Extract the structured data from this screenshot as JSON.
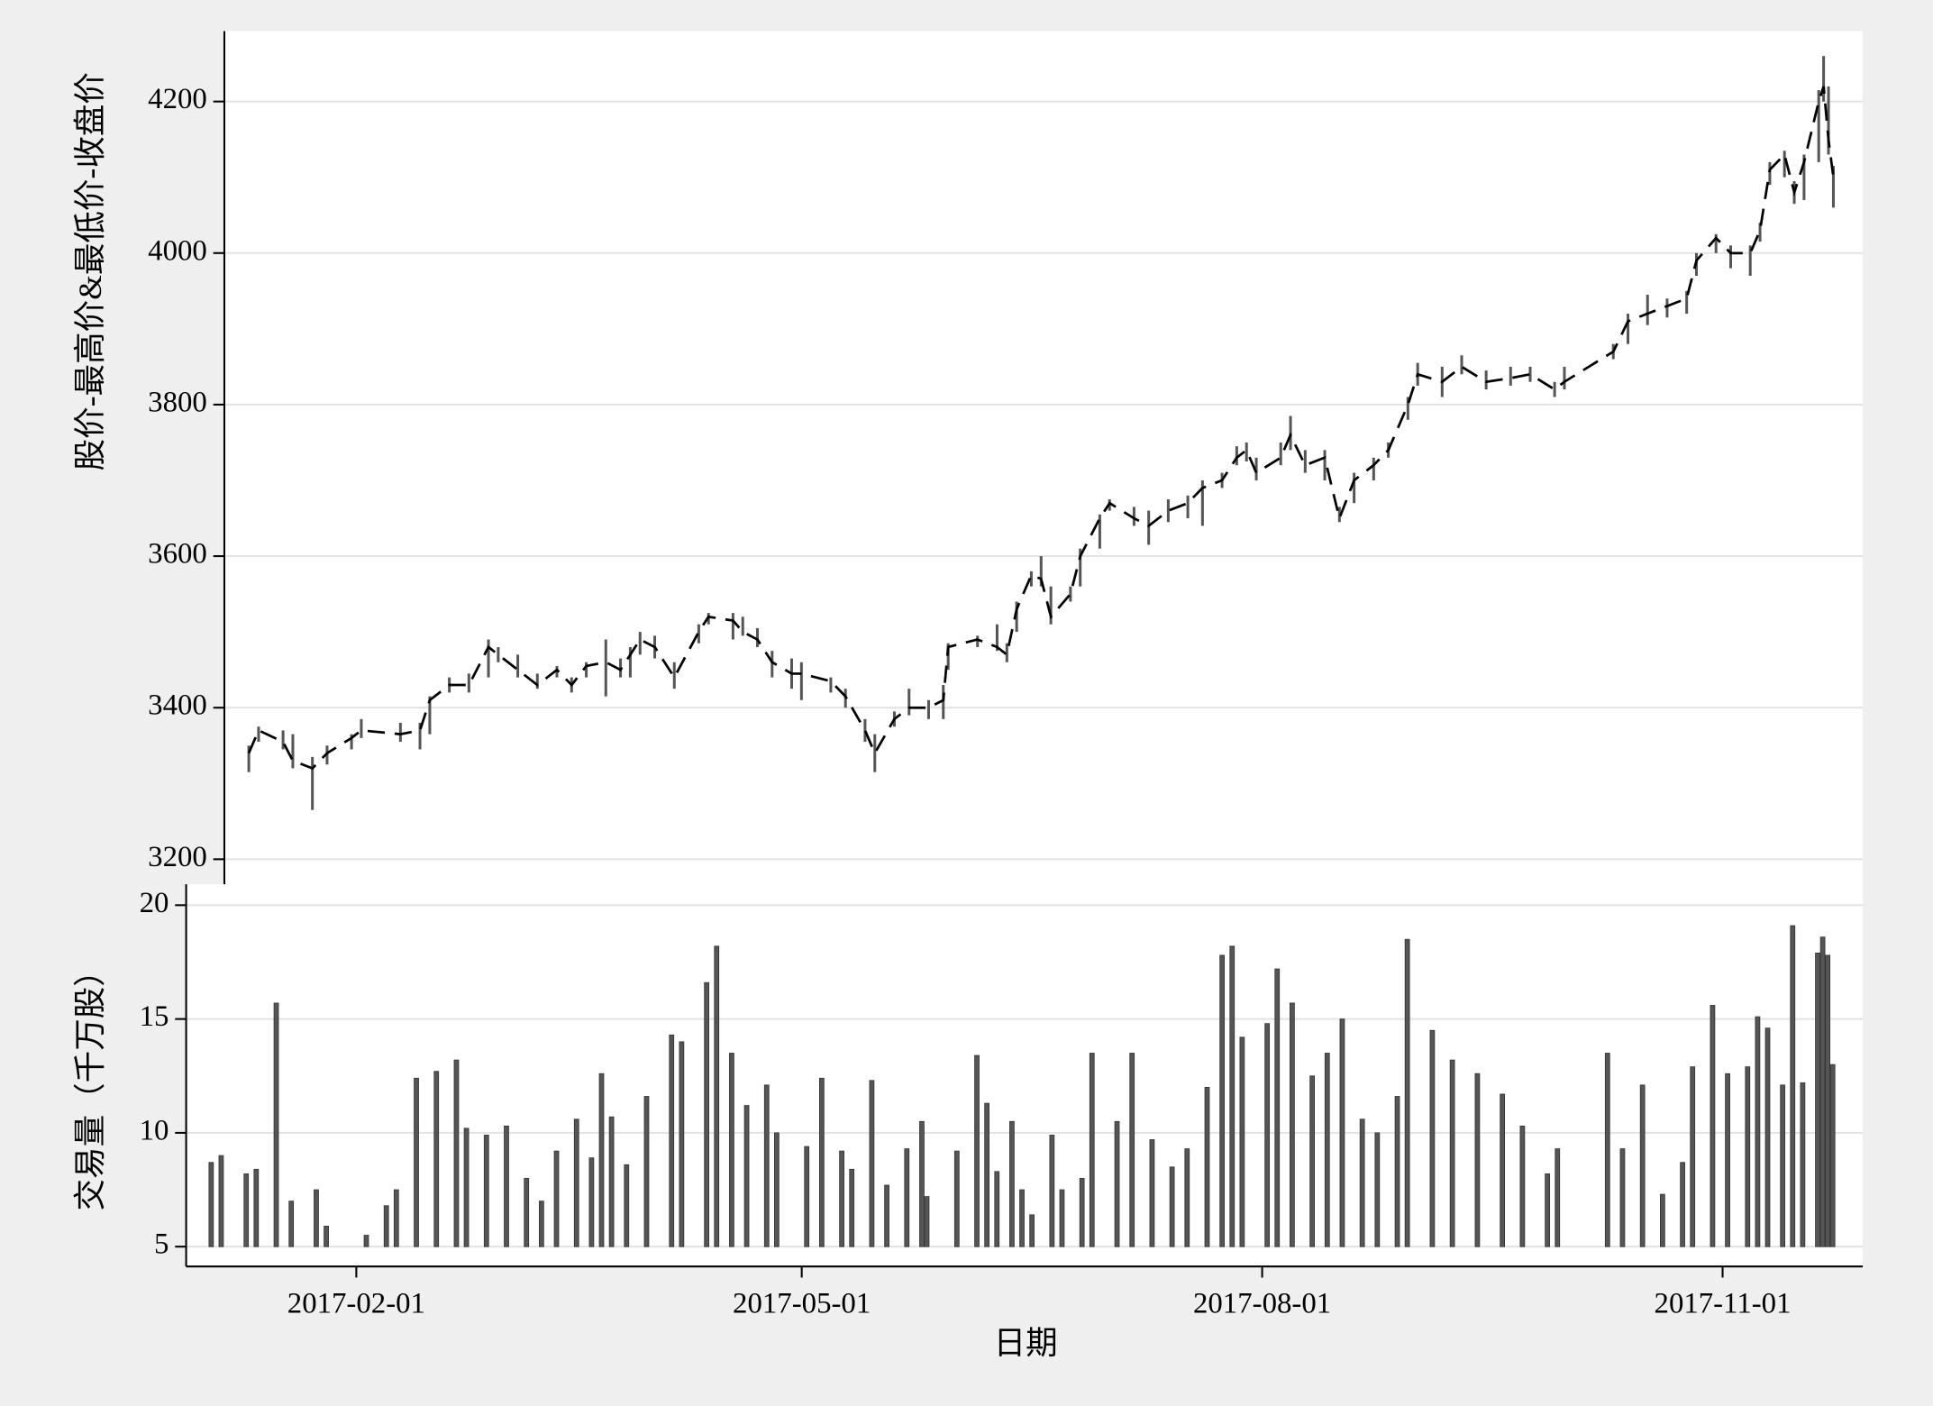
{
  "chart_data": [
    {
      "type": "hilo",
      "ylabel": "股价-最高价&最低价-收盘价",
      "x": [
        "2017-01-03",
        "2017-01-05",
        "2017-01-10",
        "2017-01-12",
        "2017-01-16",
        "2017-01-19",
        "2017-01-24",
        "2017-01-26",
        "2017-02-03",
        "2017-02-07",
        "2017-02-09",
        "2017-02-13",
        "2017-02-17",
        "2017-02-21",
        "2017-02-23",
        "2017-02-27",
        "2017-03-03",
        "2017-03-07",
        "2017-03-10",
        "2017-03-13",
        "2017-03-17",
        "2017-03-20",
        "2017-03-22",
        "2017-03-24",
        "2017-03-27",
        "2017-03-31",
        "2017-04-05",
        "2017-04-07",
        "2017-04-12",
        "2017-04-14",
        "2017-04-17",
        "2017-04-20",
        "2017-04-24",
        "2017-04-26",
        "2017-05-02",
        "2017-05-05",
        "2017-05-09",
        "2017-05-11",
        "2017-05-15",
        "2017-05-18",
        "2017-05-22",
        "2017-05-25",
        "2017-05-26",
        "2017-06-01",
        "2017-06-05",
        "2017-06-07",
        "2017-06-09",
        "2017-06-12",
        "2017-06-14",
        "2017-06-16",
        "2017-06-20",
        "2017-06-22",
        "2017-06-26",
        "2017-06-28",
        "2017-07-03",
        "2017-07-06",
        "2017-07-10",
        "2017-07-14",
        "2017-07-17",
        "2017-07-21",
        "2017-07-24",
        "2017-07-26",
        "2017-07-28",
        "2017-08-02",
        "2017-08-04",
        "2017-08-07",
        "2017-08-11",
        "2017-08-14",
        "2017-08-17",
        "2017-08-21",
        "2017-08-24",
        "2017-08-28",
        "2017-08-30",
        "2017-09-04",
        "2017-09-08",
        "2017-09-13",
        "2017-09-18",
        "2017-09-22",
        "2017-09-27",
        "2017-09-29",
        "2017-10-09",
        "2017-10-12",
        "2017-10-16",
        "2017-10-20",
        "2017-10-24",
        "2017-10-26",
        "2017-10-30",
        "2017-11-02",
        "2017-11-06",
        "2017-11-08",
        "2017-11-10",
        "2017-11-13",
        "2017-11-15",
        "2017-11-17",
        "2017-11-20",
        "2017-11-21",
        "2017-11-22",
        "2017-11-23"
      ],
      "high": [
        3350,
        3375,
        3370,
        3365,
        3335,
        3350,
        3365,
        3385,
        3380,
        3380,
        3415,
        3440,
        3445,
        3490,
        3480,
        3470,
        3445,
        3455,
        3440,
        3460,
        3490,
        3465,
        3480,
        3500,
        3495,
        3460,
        3510,
        3525,
        3525,
        3520,
        3505,
        3475,
        3465,
        3460,
        3440,
        3425,
        3385,
        3365,
        3395,
        3425,
        3410,
        3430,
        3485,
        3495,
        3510,
        3485,
        3540,
        3580,
        3600,
        3560,
        3560,
        3610,
        3655,
        3675,
        3665,
        3660,
        3675,
        3680,
        3700,
        3710,
        3745,
        3750,
        3730,
        3750,
        3785,
        3740,
        3740,
        3665,
        3710,
        3730,
        3750,
        3810,
        3855,
        3850,
        3865,
        3845,
        3850,
        3850,
        3830,
        3850,
        3880,
        3920,
        3945,
        3940,
        3950,
        4000,
        4025,
        4010,
        4010,
        4040,
        4120,
        4135,
        4095,
        4130,
        4215,
        4260,
        4220,
        4115
      ],
      "low": [
        3315,
        3355,
        3345,
        3320,
        3265,
        3325,
        3345,
        3360,
        3355,
        3345,
        3365,
        3420,
        3420,
        3440,
        3460,
        3440,
        3425,
        3440,
        3420,
        3440,
        3415,
        3440,
        3440,
        3470,
        3465,
        3425,
        3485,
        3510,
        3490,
        3495,
        3480,
        3440,
        3425,
        3410,
        3420,
        3400,
        3355,
        3315,
        3375,
        3390,
        3385,
        3385,
        3450,
        3480,
        3475,
        3460,
        3500,
        3560,
        3560,
        3510,
        3540,
        3560,
        3610,
        3660,
        3640,
        3615,
        3645,
        3650,
        3640,
        3690,
        3720,
        3725,
        3700,
        3720,
        3740,
        3710,
        3700,
        3645,
        3670,
        3700,
        3730,
        3780,
        3825,
        3810,
        3840,
        3820,
        3825,
        3830,
        3810,
        3820,
        3860,
        3880,
        3905,
        3915,
        3920,
        3970,
        4000,
        3980,
        3970,
        4015,
        4090,
        4100,
        4065,
        4070,
        4120,
        4200,
        4130,
        4060
      ],
      "close": [
        3340,
        3370,
        3355,
        3330,
        3320,
        3340,
        3360,
        3370,
        3365,
        3370,
        3410,
        3430,
        3430,
        3480,
        3470,
        3450,
        3430,
        3450,
        3430,
        3455,
        3460,
        3450,
        3470,
        3490,
        3480,
        3440,
        3500,
        3520,
        3515,
        3500,
        3490,
        3460,
        3445,
        3445,
        3435,
        3415,
        3370,
        3340,
        3385,
        3400,
        3400,
        3410,
        3480,
        3490,
        3480,
        3470,
        3530,
        3575,
        3570,
        3520,
        3550,
        3600,
        3650,
        3670,
        3650,
        3640,
        3660,
        3670,
        3690,
        3700,
        3730,
        3740,
        3710,
        3730,
        3760,
        3720,
        3730,
        3650,
        3700,
        3720,
        3740,
        3800,
        3840,
        3830,
        3850,
        3830,
        3835,
        3840,
        3820,
        3830,
        3870,
        3910,
        3920,
        3930,
        3940,
        3990,
        4020,
        4000,
        4000,
        4030,
        4110,
        4130,
        4080,
        4120,
        4200,
        4220,
        4150,
        4100
      ],
      "xlim": [
        "2016-12-29",
        "2017-11-29"
      ],
      "ylim": [
        3167,
        4293
      ],
      "yticks": [
        3200,
        3400,
        3600,
        3800,
        4000,
        4200
      ],
      "grid": true,
      "range_color": "#555555",
      "close_color": "#000000",
      "line_style": "dash"
    },
    {
      "type": "bar",
      "ylabel": "交易量（千万股）",
      "xlabel": "日期",
      "x": [
        "2017-01-03",
        "2017-01-05",
        "2017-01-10",
        "2017-01-12",
        "2017-01-16",
        "2017-01-19",
        "2017-01-24",
        "2017-01-26",
        "2017-02-03",
        "2017-02-07",
        "2017-02-09",
        "2017-02-13",
        "2017-02-17",
        "2017-02-21",
        "2017-02-23",
        "2017-02-27",
        "2017-03-03",
        "2017-03-07",
        "2017-03-10",
        "2017-03-13",
        "2017-03-17",
        "2017-03-20",
        "2017-03-22",
        "2017-03-24",
        "2017-03-27",
        "2017-03-31",
        "2017-04-05",
        "2017-04-07",
        "2017-04-12",
        "2017-04-14",
        "2017-04-17",
        "2017-04-20",
        "2017-04-24",
        "2017-04-26",
        "2017-05-02",
        "2017-05-05",
        "2017-05-09",
        "2017-05-11",
        "2017-05-15",
        "2017-05-18",
        "2017-05-22",
        "2017-05-25",
        "2017-05-26",
        "2017-06-01",
        "2017-06-05",
        "2017-06-07",
        "2017-06-09",
        "2017-06-12",
        "2017-06-14",
        "2017-06-16",
        "2017-06-20",
        "2017-06-22",
        "2017-06-26",
        "2017-06-28",
        "2017-07-03",
        "2017-07-06",
        "2017-07-10",
        "2017-07-14",
        "2017-07-17",
        "2017-07-21",
        "2017-07-24",
        "2017-07-26",
        "2017-07-28",
        "2017-08-02",
        "2017-08-04",
        "2017-08-07",
        "2017-08-11",
        "2017-08-14",
        "2017-08-17",
        "2017-08-21",
        "2017-08-24",
        "2017-08-28",
        "2017-08-30",
        "2017-09-04",
        "2017-09-08",
        "2017-09-13",
        "2017-09-18",
        "2017-09-22",
        "2017-09-27",
        "2017-09-29",
        "2017-10-09",
        "2017-10-12",
        "2017-10-16",
        "2017-10-20",
        "2017-10-24",
        "2017-10-26",
        "2017-10-30",
        "2017-11-02",
        "2017-11-06",
        "2017-11-08",
        "2017-11-10",
        "2017-11-13",
        "2017-11-15",
        "2017-11-17",
        "2017-11-20",
        "2017-11-21",
        "2017-11-22",
        "2017-11-23"
      ],
      "values": [
        8.7,
        9.0,
        8.2,
        8.4,
        15.7,
        7.0,
        7.5,
        5.9,
        5.5,
        6.8,
        7.5,
        12.4,
        12.7,
        13.2,
        10.2,
        9.9,
        10.3,
        8.0,
        7.0,
        9.2,
        10.6,
        8.9,
        12.6,
        10.7,
        8.6,
        11.6,
        14.3,
        14.0,
        16.6,
        18.2,
        13.5,
        11.2,
        12.1,
        10.0,
        9.4,
        12.4,
        9.2,
        8.4,
        12.3,
        7.7,
        9.3,
        10.5,
        7.2,
        9.2,
        13.4,
        11.3,
        8.3,
        10.5,
        7.5,
        6.4,
        9.9,
        7.5,
        8.0,
        13.5,
        10.5,
        13.5,
        9.7,
        8.5,
        9.3,
        12.0,
        17.8,
        18.2,
        14.2,
        14.8,
        17.2,
        15.7,
        12.5,
        13.5,
        15.0,
        10.6,
        10.0,
        11.6,
        18.5,
        14.5,
        13.2,
        12.6,
        11.7,
        10.3,
        8.2,
        9.3,
        13.5,
        9.3,
        12.1,
        7.3,
        8.7,
        12.9,
        15.6,
        12.6,
        12.9,
        15.1,
        14.6,
        12.1,
        19.1,
        12.2,
        17.9,
        18.6,
        17.8,
        13.0
      ],
      "xlim": [
        "2016-12-29",
        "2017-11-29"
      ],
      "ylim": [
        4.13,
        20.92
      ],
      "yticks": [
        5,
        10,
        15,
        20
      ],
      "xticks": [
        "2017-02-01",
        "2017-05-01",
        "2017-08-01",
        "2017-11-01"
      ],
      "grid": true,
      "color": "#555555"
    }
  ]
}
